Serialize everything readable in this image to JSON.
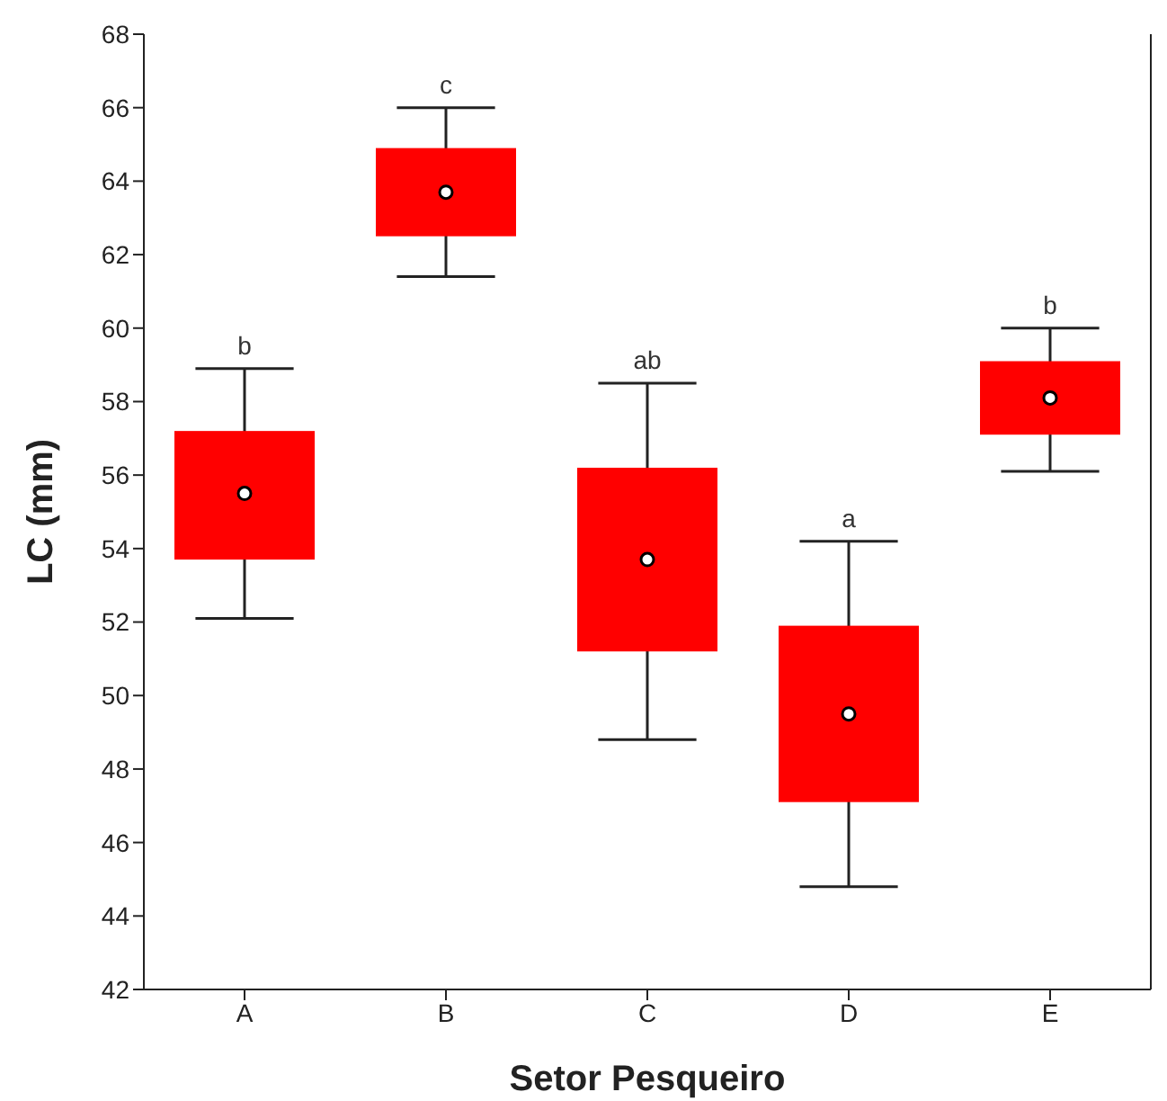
{
  "chart_data": {
    "type": "box",
    "xlabel": "Setor Pesqueiro",
    "ylabel": "LC (mm)",
    "categories": [
      "A",
      "B",
      "C",
      "D",
      "E"
    ],
    "color": "#ff0000",
    "boxes": [
      {
        "low": 52.1,
        "q1": 53.7,
        "median": 55.5,
        "q3": 57.2,
        "high": 58.9
      },
      {
        "low": 61.4,
        "q1": 62.5,
        "median": 63.7,
        "q3": 64.9,
        "high": 66.0
      },
      {
        "low": 48.8,
        "q1": 51.2,
        "median": 53.7,
        "q3": 56.2,
        "high": 58.5
      },
      {
        "low": 44.8,
        "q1": 47.1,
        "median": 49.5,
        "q3": 51.9,
        "high": 54.2
      },
      {
        "low": 56.1,
        "q1": 57.1,
        "median": 58.1,
        "q3": 59.1,
        "high": 60.0
      }
    ],
    "ylim": [
      42,
      68
    ],
    "yticks": [
      42,
      44,
      46,
      48,
      50,
      52,
      54,
      56,
      58,
      60,
      62,
      64,
      66,
      68
    ],
    "grid": false,
    "legend": false,
    "annotations": [
      {
        "text": "b",
        "x": "A",
        "y": 58.9
      },
      {
        "text": "c",
        "x": "B",
        "y": 66.0
      },
      {
        "text": "ab",
        "x": "C",
        "y": 58.5
      },
      {
        "text": "a",
        "x": "D",
        "y": 54.2
      },
      {
        "text": "b",
        "x": "E",
        "y": 60.0
      }
    ]
  }
}
